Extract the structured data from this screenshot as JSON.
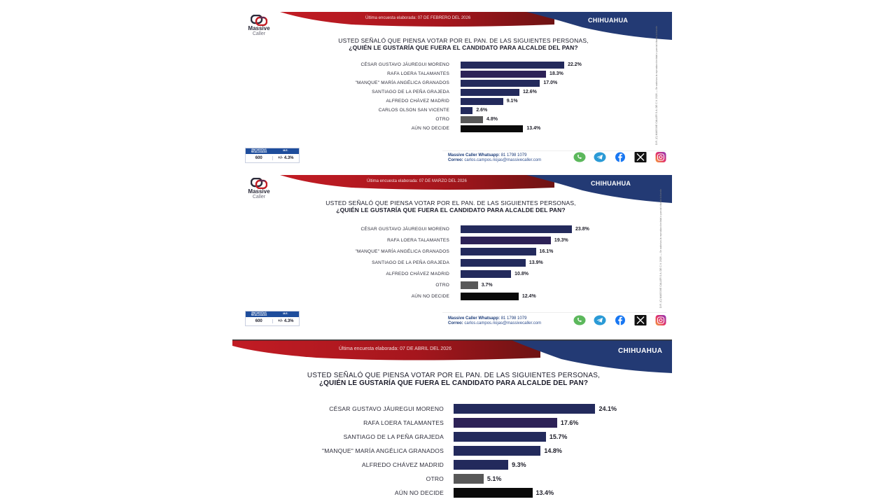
{
  "brand": {
    "name": "Massive",
    "sub": "Caller",
    "colors": {
      "red": "#b51a22",
      "dark_red": "#7a1414",
      "navy": "#233a74",
      "bar_navy": "#232a5c",
      "bar_purple": "#2d2257",
      "bar_gray": "#585858",
      "bar_black": "#0a0a0a"
    }
  },
  "panels": [
    {
      "survey_date": "Última encuesta elaborada: 07 DE FEBRERO DEL 2026",
      "region": "CHIHUAHUA",
      "title_line1": "USTED SEÑALÓ QUE PIENSA VOTAR POR EL PAN. DE LAS SIGUIENTES PERSONAS,",
      "title_line2": "¿QUIÉN LE GUSTARÍA QUE FUERA EL CANDIDATO PARA ALCALDE DEL PAN?",
      "rows": [
        {
          "label": "CÉSAR GUSTAVO JÁUREGUI MORENO",
          "value": 22.2,
          "display": "22.2%",
          "color": "#232a5c"
        },
        {
          "label": "RAFA LOERA TALAMANTES",
          "value": 18.3,
          "display": "18.3%",
          "color": "#2d2257"
        },
        {
          "label": "\"MANQUE\" MARÍA ANGÉLICA GRANADOS",
          "value": 17.0,
          "display": "17.0%",
          "color": "#232a5c"
        },
        {
          "label": "SANTIAGO DE LA PEÑA GRAJEDA",
          "value": 12.6,
          "display": "12.6%",
          "color": "#232a5c"
        },
        {
          "label": "ALFREDO CHÁVEZ MADRID",
          "value": 9.1,
          "display": "9.1%",
          "color": "#232a5c"
        },
        {
          "label": "CARLOS OLSON SAN VICENTE",
          "value": 2.6,
          "display": "2.6%",
          "color": "#232a5c"
        },
        {
          "label": "OTRO",
          "value": 4.8,
          "display": "4.8%",
          "color": "#585858"
        },
        {
          "label": "AÚN NO DECIDE",
          "value": 13.4,
          "display": "13.4%",
          "color": "#0a0a0a"
        }
      ],
      "stats": {
        "surveys_label": "ENCUESTAS REALIZADAS",
        "surveys_value": "600",
        "me_label": "M.E.",
        "me_value": "+/- 4.3%"
      },
      "contact": {
        "whatsapp_label": "Massive Caller Whatsapp:",
        "whatsapp": "81 1798 1079",
        "email_label": "Correo:",
        "email": "carlos.campos.riojas@massivecaller.com"
      },
      "vertical_note": "D.R. (C) MASSIVE CALLER S.A. DE C.V. 2026 — Se autoriza la reproducción total o parcial citando la fuente"
    },
    {
      "survey_date": "Última encuesta elaborada: 07 DE MARZO DEL 2026",
      "region": "CHIHUAHUA",
      "title_line1": "USTED SEÑALÓ QUE PIENSA VOTAR POR EL PAN. DE LAS SIGUIENTES PERSONAS,",
      "title_line2": "¿QUIÉN LE GUSTARÍA QUE FUERA EL CANDIDATO PARA ALCALDE DEL PAN?",
      "rows": [
        {
          "label": "CÉSAR GUSTAVO JÁUREGUI MORENO",
          "value": 23.8,
          "display": "23.8%",
          "color": "#232a5c"
        },
        {
          "label": "RAFA LOERA TALAMANTES",
          "value": 19.3,
          "display": "19.3%",
          "color": "#2d2257"
        },
        {
          "label": "\"MANQUE\" MARÍA ANGÉLICA GRANADOS",
          "value": 16.1,
          "display": "16.1%",
          "color": "#232a5c"
        },
        {
          "label": "SANTIAGO DE LA PEÑA GRAJEDA",
          "value": 13.9,
          "display": "13.9%",
          "color": "#232a5c"
        },
        {
          "label": "ALFREDO CHÁVEZ MADRID",
          "value": 10.8,
          "display": "10.8%",
          "color": "#232a5c"
        },
        {
          "label": "OTRO",
          "value": 3.7,
          "display": "3.7%",
          "color": "#585858"
        },
        {
          "label": "AÚN NO DECIDE",
          "value": 12.4,
          "display": "12.4%",
          "color": "#0a0a0a"
        }
      ],
      "stats": {
        "surveys_label": "ENCUESTAS REALIZADAS",
        "surveys_value": "600",
        "me_label": "M.E.",
        "me_value": "+/- 4.3%"
      },
      "contact": {
        "whatsapp_label": "Massive Caller Whatsapp:",
        "whatsapp": "81 1798 1079",
        "email_label": "Correo:",
        "email": "carlos.campos.riojas@massivecaller.com"
      },
      "vertical_note": "D.R. (C) MASSIVE CALLER S.A. DE C.V. 2026 — Se autoriza la reproducción total o parcial citando la fuente"
    },
    {
      "survey_date": "Última encuesta elaborada: 07 DE ABRIL DEL 2026",
      "region": "CHIHUAHUA",
      "title_line1": "USTED SEÑALÓ QUE PIENSA VOTAR POR EL PAN. DE LAS SIGUIENTES PERSONAS,",
      "title_line2": "¿QUIÉN LE GUSTARÍA QUE FUERA EL CANDIDATO PARA ALCALDE DEL PAN?",
      "rows": [
        {
          "label": "CÉSAR GUSTAVO JÁUREGUI MORENO",
          "value": 24.1,
          "display": "24.1%",
          "color": "#232a5c"
        },
        {
          "label": "RAFA LOERA TALAMANTES",
          "value": 17.6,
          "display": "17.6%",
          "color": "#2d2257"
        },
        {
          "label": "SANTIAGO DE LA PEÑA GRAJEDA",
          "value": 15.7,
          "display": "15.7%",
          "color": "#232a5c"
        },
        {
          "label": "\"MANQUE\" MARÍA ANGÉLICA GRANADOS",
          "value": 14.8,
          "display": "14.8%",
          "color": "#232a5c"
        },
        {
          "label": "ALFREDO CHÁVEZ MADRID",
          "value": 9.3,
          "display": "9.3%",
          "color": "#232a5c"
        },
        {
          "label": "OTRO",
          "value": 5.1,
          "display": "5.1%",
          "color": "#585858"
        },
        {
          "label": "AÚN NO DECIDE",
          "value": 13.4,
          "display": "13.4%",
          "color": "#0a0a0a"
        }
      ]
    }
  ],
  "chart_data": [
    {
      "type": "bar",
      "orientation": "horizontal",
      "title": "USTED SEÑALÓ QUE PIENSA VOTAR POR EL PAN. DE LAS SIGUIENTES PERSONAS, ¿QUIÉN LE GUSTARÍA QUE FUERA EL CANDIDATO PARA ALCALDE DEL PAN?",
      "subtitle": "Última encuesta elaborada: 07 DE FEBRERO DEL 2026 — CHIHUAHUA",
      "categories": [
        "CÉSAR GUSTAVO JÁUREGUI MORENO",
        "RAFA LOERA TALAMANTES",
        "\"MANQUE\" MARÍA ANGÉLICA GRANADOS",
        "SANTIAGO DE LA PEÑA GRAJEDA",
        "ALFREDO CHÁVEZ MADRID",
        "CARLOS OLSON SAN VICENTE",
        "OTRO",
        "AÚN NO DECIDE"
      ],
      "values": [
        22.2,
        18.3,
        17.0,
        12.6,
        9.1,
        2.6,
        4.8,
        13.4
      ],
      "unit": "%",
      "xlabel": "",
      "ylabel": "",
      "grid": false,
      "legend": null,
      "annotations": [
        "ENCUESTAS REALIZADAS: 600",
        "M.E.: +/- 4.3%"
      ]
    },
    {
      "type": "bar",
      "orientation": "horizontal",
      "title": "USTED SEÑALÓ QUE PIENSA VOTAR POR EL PAN. DE LAS SIGUIENTES PERSONAS, ¿QUIÉN LE GUSTARÍA QUE FUERA EL CANDIDATO PARA ALCALDE DEL PAN?",
      "subtitle": "Última encuesta elaborada: 07 DE MARZO DEL 2026 — CHIHUAHUA",
      "categories": [
        "CÉSAR GUSTAVO JÁUREGUI MORENO",
        "RAFA LOERA TALAMANTES",
        "\"MANQUE\" MARÍA ANGÉLICA GRANADOS",
        "SANTIAGO DE LA PEÑA GRAJEDA",
        "ALFREDO CHÁVEZ MADRID",
        "OTRO",
        "AÚN NO DECIDE"
      ],
      "values": [
        23.8,
        19.3,
        16.1,
        13.9,
        10.8,
        3.7,
        12.4
      ],
      "unit": "%",
      "xlabel": "",
      "ylabel": "",
      "grid": false,
      "legend": null,
      "annotations": [
        "ENCUESTAS REALIZADAS: 600",
        "M.E.: +/- 4.3%"
      ]
    },
    {
      "type": "bar",
      "orientation": "horizontal",
      "title": "USTED SEÑALÓ QUE PIENSA VOTAR POR EL PAN. DE LAS SIGUIENTES PERSONAS, ¿QUIÉN LE GUSTARÍA QUE FUERA EL CANDIDATO PARA ALCALDE DEL PAN?",
      "subtitle": "Última encuesta elaborada: 07 DE ABRIL DEL 2026 — CHIHUAHUA",
      "categories": [
        "CÉSAR GUSTAVO JÁUREGUI MORENO",
        "RAFA LOERA TALAMANTES",
        "SANTIAGO DE LA PEÑA GRAJEDA",
        "\"MANQUE\" MARÍA ANGÉLICA GRANADOS",
        "ALFREDO CHÁVEZ MADRID",
        "OTRO",
        "AÚN NO DECIDE"
      ],
      "values": [
        24.1,
        17.6,
        15.7,
        14.8,
        9.3,
        5.1,
        13.4
      ],
      "unit": "%",
      "xlabel": "",
      "ylabel": "",
      "grid": false,
      "legend": null
    }
  ]
}
